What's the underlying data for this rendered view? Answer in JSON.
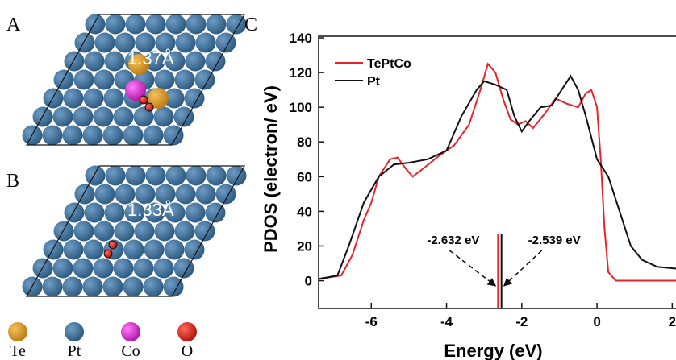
{
  "figure": {
    "panel_labels": [
      "A",
      "B",
      "C"
    ],
    "distances": [
      "1.37Å",
      "1.33Å"
    ],
    "atom_legend": [
      "Te",
      "Pt",
      "Co",
      "O"
    ]
  },
  "chart_data": {
    "type": "line",
    "xlabel": "Energy (eV)",
    "ylabel": "PDOS (electron/ eV)",
    "xlim": [
      -7.4,
      2.1
    ],
    "ylim": [
      -16,
      140
    ],
    "xticks": [
      -6,
      -4,
      -2,
      0,
      2
    ],
    "yticks": [
      0,
      20,
      40,
      60,
      80,
      100,
      120,
      140
    ],
    "legend": "upper left",
    "series": [
      {
        "name": "TePtCo",
        "color": "#e8232a",
        "x": [
          -7.4,
          -6.8,
          -6.5,
          -6.2,
          -6,
          -5.8,
          -5.5,
          -5.3,
          -5.1,
          -4.9,
          -4.6,
          -4.2,
          -3.8,
          -3.4,
          -3.1,
          -2.9,
          -2.7,
          -2.5,
          -2.3,
          -2.1,
          -1.9,
          -1.7,
          -1.4,
          -1.1,
          -0.8,
          -0.5,
          -0.3,
          -0.15,
          0,
          0.1,
          0.2,
          0.3,
          0.5,
          2.1
        ],
        "y": [
          1,
          3,
          15,
          35,
          45,
          60,
          70,
          71,
          65,
          60,
          65,
          72,
          78,
          90,
          110,
          125,
          120,
          105,
          93,
          90,
          92,
          88,
          96,
          105,
          102,
          100,
          108,
          110,
          100,
          70,
          30,
          5,
          0,
          0
        ]
      },
      {
        "name": "Pt",
        "color": "#111111",
        "x": [
          -7.4,
          -6.9,
          -6.6,
          -6.2,
          -5.8,
          -5.4,
          -5,
          -4.5,
          -4,
          -3.6,
          -3.2,
          -3,
          -2.7,
          -2.4,
          -2.2,
          -2,
          -1.8,
          -1.5,
          -1.2,
          -1,
          -0.7,
          -0.5,
          -0.3,
          0,
          0.3,
          0.6,
          0.9,
          1.2,
          1.6,
          2.1
        ],
        "y": [
          1,
          3,
          20,
          45,
          60,
          67,
          68,
          70,
          75,
          95,
          110,
          115,
          113,
          110,
          95,
          86,
          92,
          100,
          101,
          108,
          118,
          110,
          95,
          70,
          60,
          40,
          20,
          12,
          8,
          7
        ]
      }
    ],
    "vlines": [
      {
        "value": -2.632,
        "label": "-2.632 eV",
        "color": "#e8232a"
      },
      {
        "value": -2.539,
        "label": "-2.539 eV",
        "color": "#111111"
      }
    ]
  }
}
